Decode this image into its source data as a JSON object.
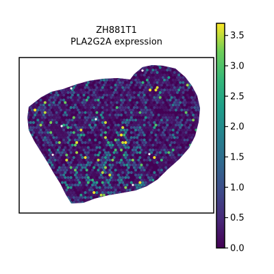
{
  "chart_data": {
    "type": "heatmap",
    "subtype": "spatial-hexbin",
    "title": "ZH881T1",
    "subtitle": "PLA2G2A expression",
    "colormap": "viridis",
    "colorbar": {
      "range": [
        0.0,
        3.7
      ],
      "ticks": [
        0.0,
        0.5,
        1.0,
        1.5,
        2.0,
        2.5,
        3.0,
        3.5
      ],
      "tick_labels": [
        "0.0",
        "0.5",
        "1.0",
        "1.5",
        "2.0",
        "2.5",
        "3.0",
        "3.5"
      ]
    },
    "value_distribution": {
      "background": 0.0,
      "typical_range": [
        0.0,
        1.0
      ],
      "high_spots_range": [
        1.5,
        3.7
      ]
    },
    "high_expression_regions": [
      "center",
      "lower-center",
      "center-right"
    ],
    "axes_visible": false,
    "grid": false
  }
}
